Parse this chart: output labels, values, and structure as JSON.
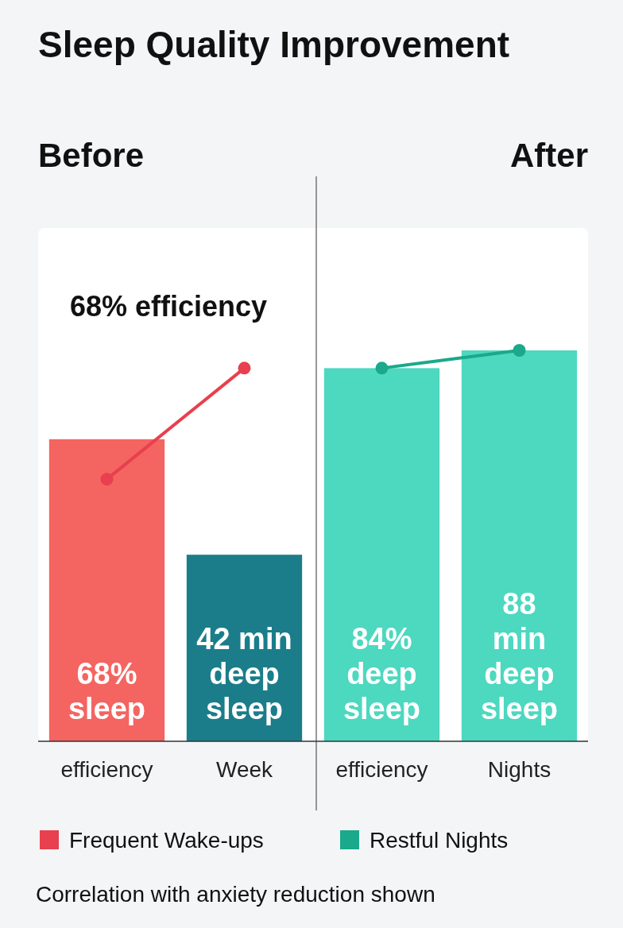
{
  "chart_data": {
    "type": "bar",
    "title": "Sleep Quality Improvement",
    "categories": [
      "efficiency",
      "Week",
      "efficiency",
      "Nights"
    ],
    "values": [
      68,
      42,
      84,
      88
    ],
    "colors": [
      "#f46461",
      "#1b7d8a",
      "#4dd8c0",
      "#4dd8c0"
    ],
    "value_labels": [
      "68%\nsleep",
      "42 min\ndeep\nsleep",
      "84%\ndeep\nsleep",
      "88\nmin\ndeep\nsleep"
    ],
    "series": [
      {
        "name": "Frequent Wake-ups",
        "type": "line",
        "color": "#e8404e",
        "values": [
          59,
          84,
          null,
          null
        ]
      },
      {
        "name": "Restful Nights",
        "type": "line",
        "color": "#1aa98a",
        "values": [
          null,
          null,
          84,
          88
        ]
      }
    ],
    "marker": "circle",
    "legend": "bottom",
    "grid": false,
    "annotations": [
      "Before",
      "After",
      "68% efficiency",
      "Correlation with anxiety reduction shown"
    ]
  }
}
